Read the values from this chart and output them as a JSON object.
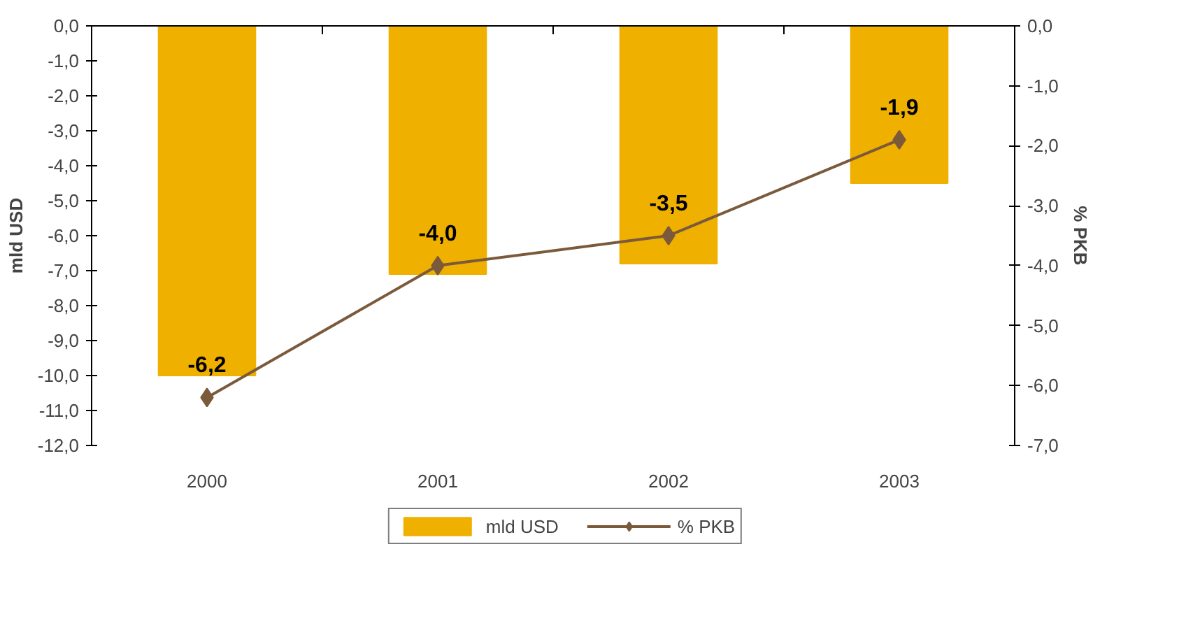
{
  "chart_data": {
    "type": "bar",
    "categories": [
      "2000",
      "2001",
      "2002",
      "2003"
    ],
    "ylabel": "mld USD",
    "y2label": "% PKB",
    "series": [
      {
        "name": "mld USD",
        "color": "#f0b000",
        "values": [
          -10.0,
          -7.1,
          -6.8,
          -4.5
        ]
      },
      {
        "name": "% PKB",
        "type": "line",
        "axis": "y2",
        "color": "#7b5a3c",
        "marker": "diamond",
        "values": [
          -6.2,
          -4.0,
          -3.5,
          -1.9
        ],
        "value_labels": [
          "-6,2",
          "-4,0",
          "-3,5",
          "-1,9"
        ]
      }
    ],
    "ylim": [
      -12,
      0
    ],
    "yticks": [
      {
        "value": 0,
        "label": "0,0"
      },
      {
        "value": -1,
        "label": "-1,0"
      },
      {
        "value": -2,
        "label": "-2,0"
      },
      {
        "value": -3,
        "label": "-3,0"
      },
      {
        "value": -4,
        "label": "-4,0"
      },
      {
        "value": -5,
        "label": "-5,0"
      },
      {
        "value": -6,
        "label": "-6,0"
      },
      {
        "value": -7,
        "label": "-7,0"
      },
      {
        "value": -8,
        "label": "-8,0"
      },
      {
        "value": -9,
        "label": "-9,0"
      },
      {
        "value": -10,
        "label": "-10,0"
      },
      {
        "value": -11,
        "label": "-11,0"
      },
      {
        "value": -12,
        "label": "-12,0"
      }
    ],
    "y2lim": [
      -7,
      0
    ],
    "y2ticks": [
      {
        "value": 0,
        "label": "0,0"
      },
      {
        "value": -1,
        "label": "-1,0"
      },
      {
        "value": -2,
        "label": "-2,0"
      },
      {
        "value": -3,
        "label": "-3,0"
      },
      {
        "value": -4,
        "label": "-4,0"
      },
      {
        "value": -5,
        "label": "-5,0"
      },
      {
        "value": -6,
        "label": "-6,0"
      },
      {
        "value": -7,
        "label": "-7,0"
      }
    ],
    "grid": false,
    "legend": "bottom"
  }
}
